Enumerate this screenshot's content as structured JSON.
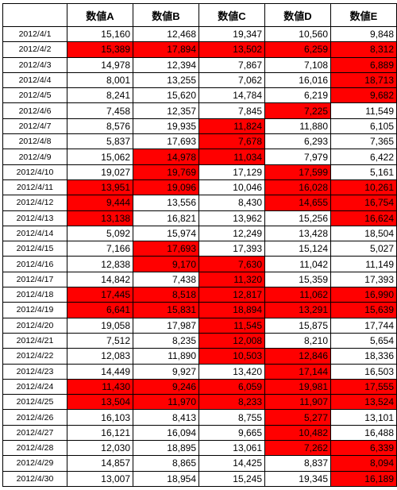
{
  "table": {
    "columns": [
      "",
      "数値A",
      "数値B",
      "数値C",
      "数値D",
      "数値E"
    ],
    "highlight_color": "#ff0000",
    "rows": [
      {
        "date": "2012/4/1",
        "values": [
          "15,160",
          "12,468",
          "19,347",
          "10,560",
          "9,848"
        ],
        "highlight": [
          false,
          false,
          false,
          false,
          false
        ]
      },
      {
        "date": "2012/4/2",
        "values": [
          "15,389",
          "17,894",
          "13,502",
          "6,259",
          "8,312"
        ],
        "highlight": [
          true,
          true,
          true,
          true,
          true
        ]
      },
      {
        "date": "2012/4/3",
        "values": [
          "14,978",
          "12,394",
          "7,867",
          "7,108",
          "6,889"
        ],
        "highlight": [
          false,
          false,
          false,
          false,
          true
        ]
      },
      {
        "date": "2012/4/4",
        "values": [
          "8,001",
          "13,255",
          "7,062",
          "16,016",
          "18,713"
        ],
        "highlight": [
          false,
          false,
          false,
          false,
          true
        ]
      },
      {
        "date": "2012/4/5",
        "values": [
          "8,241",
          "15,620",
          "14,784",
          "6,219",
          "9,682"
        ],
        "highlight": [
          false,
          false,
          false,
          false,
          true
        ]
      },
      {
        "date": "2012/4/6",
        "values": [
          "7,458",
          "12,357",
          "7,845",
          "7,225",
          "11,549"
        ],
        "highlight": [
          false,
          false,
          false,
          true,
          false
        ]
      },
      {
        "date": "2012/4/7",
        "values": [
          "8,576",
          "19,935",
          "11,824",
          "11,880",
          "6,105"
        ],
        "highlight": [
          false,
          false,
          true,
          false,
          false
        ]
      },
      {
        "date": "2012/4/8",
        "values": [
          "5,837",
          "17,693",
          "7,678",
          "6,293",
          "7,365"
        ],
        "highlight": [
          false,
          false,
          true,
          false,
          false
        ]
      },
      {
        "date": "2012/4/9",
        "values": [
          "15,062",
          "14,978",
          "11,034",
          "7,979",
          "6,422"
        ],
        "highlight": [
          false,
          true,
          true,
          false,
          false
        ]
      },
      {
        "date": "2012/4/10",
        "values": [
          "19,027",
          "19,769",
          "17,129",
          "17,599",
          "5,161"
        ],
        "highlight": [
          false,
          true,
          false,
          true,
          false
        ]
      },
      {
        "date": "2012/4/11",
        "values": [
          "13,951",
          "19,096",
          "10,046",
          "16,028",
          "10,261"
        ],
        "highlight": [
          true,
          true,
          false,
          true,
          true
        ]
      },
      {
        "date": "2012/4/12",
        "values": [
          "9,444",
          "13,556",
          "8,430",
          "14,655",
          "16,754"
        ],
        "highlight": [
          true,
          false,
          false,
          true,
          true
        ]
      },
      {
        "date": "2012/4/13",
        "values": [
          "13,138",
          "16,821",
          "13,962",
          "15,256",
          "16,624"
        ],
        "highlight": [
          true,
          false,
          false,
          false,
          true
        ]
      },
      {
        "date": "2012/4/14",
        "values": [
          "5,092",
          "15,974",
          "12,249",
          "13,428",
          "18,504"
        ],
        "highlight": [
          false,
          false,
          false,
          false,
          false
        ]
      },
      {
        "date": "2012/4/15",
        "values": [
          "7,166",
          "17,693",
          "17,393",
          "15,124",
          "5,027"
        ],
        "highlight": [
          false,
          true,
          false,
          false,
          false
        ]
      },
      {
        "date": "2012/4/16",
        "values": [
          "12,838",
          "9,170",
          "7,630",
          "11,042",
          "11,149"
        ],
        "highlight": [
          false,
          true,
          true,
          false,
          false
        ]
      },
      {
        "date": "2012/4/17",
        "values": [
          "14,842",
          "7,438",
          "11,320",
          "15,359",
          "17,393"
        ],
        "highlight": [
          false,
          false,
          true,
          false,
          false
        ]
      },
      {
        "date": "2012/4/18",
        "values": [
          "17,445",
          "8,518",
          "12,817",
          "11,062",
          "16,990"
        ],
        "highlight": [
          true,
          true,
          true,
          true,
          true
        ]
      },
      {
        "date": "2012/4/19",
        "values": [
          "6,641",
          "15,831",
          "18,894",
          "13,291",
          "15,639"
        ],
        "highlight": [
          true,
          true,
          true,
          true,
          true
        ]
      },
      {
        "date": "2012/4/20",
        "values": [
          "19,058",
          "17,987",
          "11,545",
          "15,875",
          "17,744"
        ],
        "highlight": [
          false,
          false,
          true,
          false,
          false
        ]
      },
      {
        "date": "2012/4/21",
        "values": [
          "7,512",
          "8,235",
          "12,008",
          "8,210",
          "5,654"
        ],
        "highlight": [
          false,
          false,
          true,
          false,
          false
        ]
      },
      {
        "date": "2012/4/22",
        "values": [
          "12,083",
          "11,890",
          "10,503",
          "12,846",
          "18,336"
        ],
        "highlight": [
          false,
          false,
          true,
          true,
          false
        ]
      },
      {
        "date": "2012/4/23",
        "values": [
          "14,449",
          "9,927",
          "13,420",
          "17,144",
          "16,503"
        ],
        "highlight": [
          false,
          false,
          false,
          true,
          false
        ]
      },
      {
        "date": "2012/4/24",
        "values": [
          "11,430",
          "9,246",
          "6,059",
          "19,981",
          "17,555"
        ],
        "highlight": [
          true,
          true,
          true,
          true,
          true
        ]
      },
      {
        "date": "2012/4/25",
        "values": [
          "13,504",
          "11,970",
          "8,233",
          "11,907",
          "13,524"
        ],
        "highlight": [
          true,
          true,
          true,
          true,
          true
        ]
      },
      {
        "date": "2012/4/26",
        "values": [
          "16,103",
          "8,413",
          "8,755",
          "5,277",
          "13,101"
        ],
        "highlight": [
          false,
          false,
          false,
          true,
          false
        ]
      },
      {
        "date": "2012/4/27",
        "values": [
          "16,121",
          "16,094",
          "9,665",
          "10,482",
          "16,488"
        ],
        "highlight": [
          false,
          false,
          false,
          true,
          false
        ]
      },
      {
        "date": "2012/4/28",
        "values": [
          "12,030",
          "18,895",
          "13,061",
          "7,262",
          "6,339"
        ],
        "highlight": [
          false,
          false,
          false,
          true,
          true
        ]
      },
      {
        "date": "2012/4/29",
        "values": [
          "14,857",
          "8,865",
          "14,425",
          "8,837",
          "8,094"
        ],
        "highlight": [
          false,
          false,
          false,
          false,
          true
        ]
      },
      {
        "date": "2012/4/30",
        "values": [
          "13,007",
          "18,954",
          "15,245",
          "19,345",
          "16,189"
        ],
        "highlight": [
          false,
          false,
          false,
          false,
          true
        ]
      }
    ]
  }
}
